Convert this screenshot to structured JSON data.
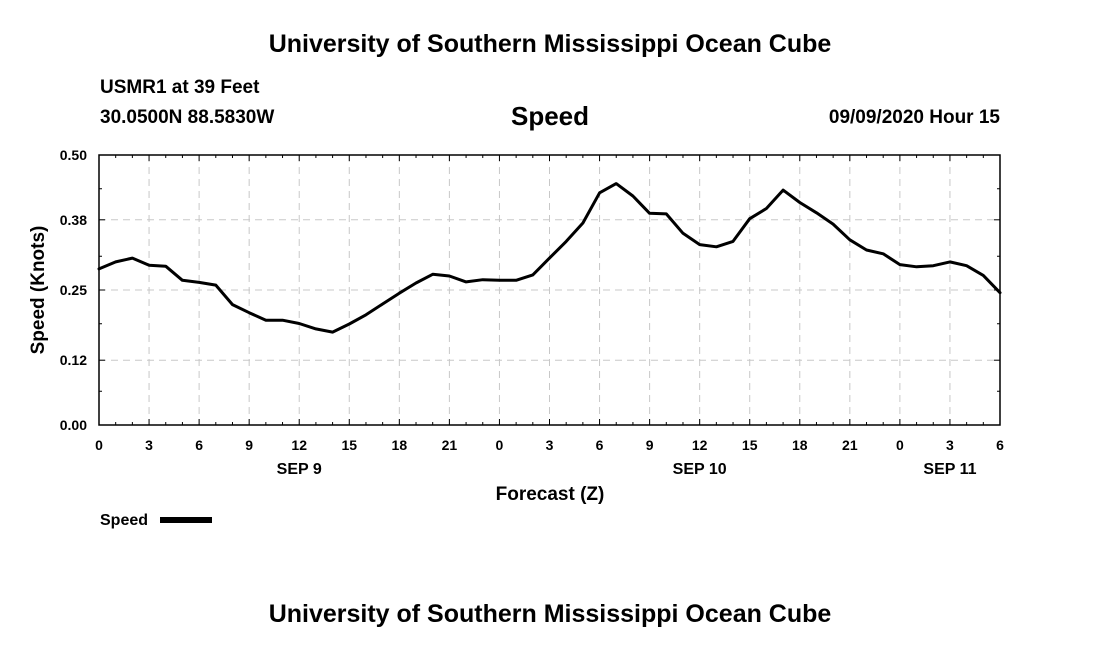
{
  "page": {
    "title_top": "University of Southern Mississippi Ocean Cube",
    "title_bottom": "University of Southern Mississippi Ocean Cube",
    "station": "USMR1 at 39 Feet",
    "location": "30.0500N 88.5830W",
    "variable": "Speed",
    "issued": "09/09/2020 Hour 15"
  },
  "chart_data": {
    "type": "line",
    "xlabel": "Forecast (Z)",
    "ylabel": "Speed (Knots)",
    "ylim": [
      0,
      0.5
    ],
    "yticks": [
      0.0,
      0.12,
      0.25,
      0.38,
      0.5
    ],
    "ytick_labels": [
      "0.00",
      "0.12",
      "0.25",
      "0.38",
      "0.50"
    ],
    "xlim": [
      0,
      54
    ],
    "xticks": [
      0,
      3,
      6,
      9,
      12,
      15,
      18,
      21,
      24,
      27,
      30,
      33,
      36,
      39,
      42,
      45,
      48,
      51,
      54
    ],
    "xtick_labels": [
      "0",
      "3",
      "6",
      "9",
      "12",
      "15",
      "18",
      "21",
      "0",
      "3",
      "6",
      "9",
      "12",
      "15",
      "18",
      "21",
      "0",
      "3",
      "6"
    ],
    "date_labels": [
      {
        "x": 12,
        "label": "SEP 9"
      },
      {
        "x": 36,
        "label": "SEP 10"
      },
      {
        "x": 51,
        "label": "SEP 11"
      }
    ],
    "grid": true,
    "legend": "bottom-left",
    "series": [
      {
        "name": "Speed",
        "x": [
          0,
          1,
          2,
          3,
          4,
          5,
          6,
          7,
          8,
          9,
          10,
          11,
          12,
          13,
          14,
          15,
          16,
          17,
          18,
          19,
          20,
          21,
          22,
          23,
          24,
          25,
          26,
          27,
          28,
          29,
          30,
          31,
          32,
          33,
          34,
          35,
          36,
          37,
          38,
          39,
          40,
          41,
          42,
          43,
          44,
          45,
          46,
          47,
          48,
          49,
          50,
          51,
          52,
          53,
          54
        ],
        "values": [
          0.289,
          0.302,
          0.309,
          0.296,
          0.294,
          0.268,
          0.264,
          0.259,
          0.223,
          0.208,
          0.194,
          0.194,
          0.188,
          0.178,
          0.172,
          0.187,
          0.204,
          0.224,
          0.244,
          0.263,
          0.279,
          0.276,
          0.265,
          0.269,
          0.268,
          0.268,
          0.278,
          0.309,
          0.34,
          0.374,
          0.43,
          0.447,
          0.424,
          0.392,
          0.391,
          0.355,
          0.334,
          0.33,
          0.34,
          0.382,
          0.401,
          0.435,
          0.412,
          0.393,
          0.372,
          0.343,
          0.324,
          0.317,
          0.297,
          0.293,
          0.295,
          0.302,
          0.295,
          0.277,
          0.245
        ]
      }
    ]
  }
}
